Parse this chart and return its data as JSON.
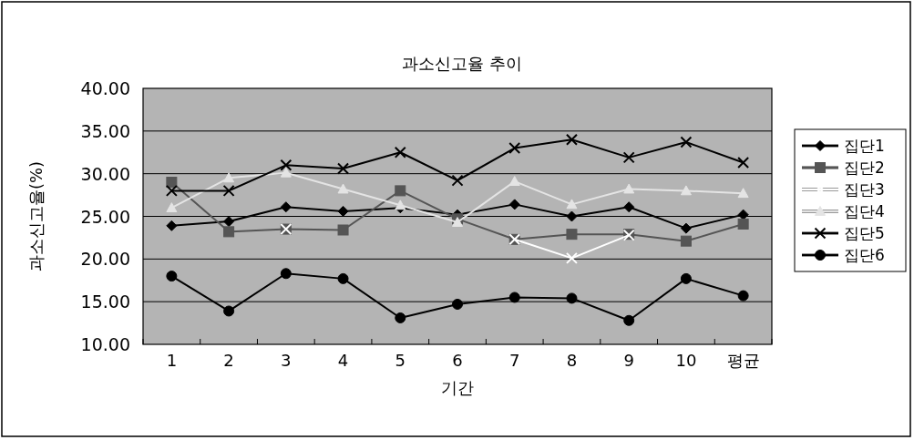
{
  "chart_data": {
    "type": "line",
    "title": "과소신고율 추이",
    "xlabel": "기간",
    "ylabel": "과소신고율(%)",
    "categories": [
      "1",
      "2",
      "3",
      "4",
      "5",
      "6",
      "7",
      "8",
      "9",
      "10",
      "평균"
    ],
    "ylim": [
      10,
      40
    ],
    "yticks": [
      {
        "value": 10,
        "label": "10.00"
      },
      {
        "value": 15,
        "label": "15.00"
      },
      {
        "value": 20,
        "label": "20.00"
      },
      {
        "value": 25,
        "label": "25.00"
      },
      {
        "value": 30,
        "label": "30.00"
      },
      {
        "value": 35,
        "label": "35.00"
      },
      {
        "value": 40,
        "label": "40.00"
      }
    ],
    "grid": "y",
    "legend": "right",
    "series": [
      {
        "name": "집단1",
        "color": "#000000",
        "marker": "diamond",
        "values": [
          23.9,
          24.4,
          26.1,
          25.6,
          26.0,
          25.2,
          26.4,
          25.0,
          26.1,
          23.6,
          25.2
        ]
      },
      {
        "name": "집단2",
        "color": "#555555",
        "marker": "square",
        "values": [
          29.0,
          23.2,
          23.5,
          23.4,
          28.0,
          24.7,
          22.3,
          22.9,
          22.9,
          22.1,
          24.1
        ]
      },
      {
        "name": "집단3",
        "color": "#ffffff",
        "marker": "cross",
        "values": [
          null,
          null,
          23.5,
          null,
          null,
          null,
          22.3,
          20.1,
          22.8,
          null,
          null
        ]
      },
      {
        "name": "집단4",
        "color": "#e4e4e4",
        "marker": "triangle",
        "values": [
          26.0,
          29.5,
          30.1,
          28.2,
          26.3,
          24.3,
          29.1,
          26.4,
          28.2,
          28.0,
          27.7
        ]
      },
      {
        "name": "집단5",
        "color": "#000000",
        "marker": "cross",
        "values": [
          28.0,
          28.0,
          31.0,
          30.6,
          32.5,
          29.2,
          33.0,
          34.0,
          31.9,
          33.7,
          31.3
        ]
      },
      {
        "name": "집단6",
        "color": "#000000",
        "marker": "circle",
        "values": [
          18.0,
          13.9,
          18.3,
          17.7,
          13.1,
          14.7,
          15.5,
          15.4,
          12.8,
          17.7,
          15.7
        ]
      }
    ]
  }
}
